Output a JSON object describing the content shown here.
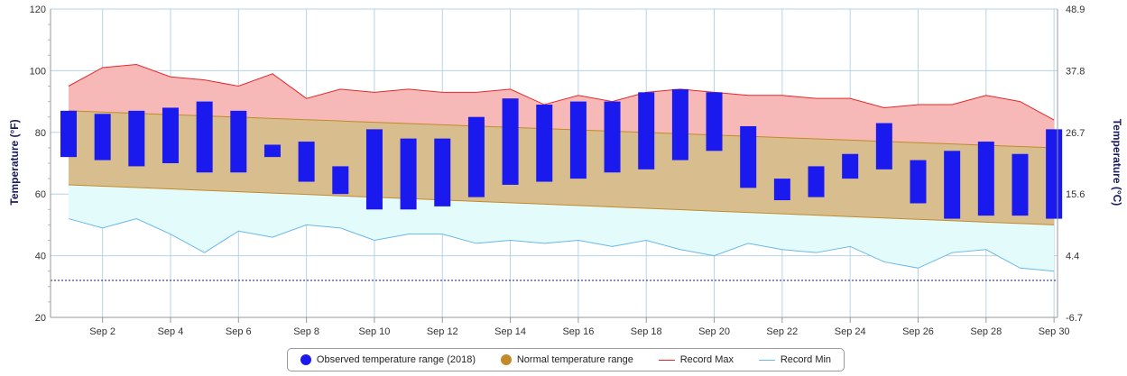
{
  "chart_data": {
    "type": "bar",
    "left_axis": {
      "label": "Temperature (°F)",
      "ticks": [
        "20",
        "40",
        "60",
        "80",
        "100",
        "120"
      ],
      "range": [
        20,
        120
      ]
    },
    "right_axis": {
      "label": "Temperature (°C)",
      "ticks": [
        "-6.7",
        "4.4",
        "15.6",
        "26.7",
        "37.8",
        "48.9"
      ]
    },
    "x_tick_labels": [
      "Sep 2",
      "Sep 4",
      "Sep 6",
      "Sep 8",
      "Sep 10",
      "Sep 12",
      "Sep 14",
      "Sep 16",
      "Sep 18",
      "Sep 20",
      "Sep 22",
      "Sep 24",
      "Sep 26",
      "Sep 28",
      "Sep 30"
    ],
    "days": [
      1,
      2,
      3,
      4,
      5,
      6,
      7,
      8,
      9,
      10,
      11,
      12,
      13,
      14,
      15,
      16,
      17,
      18,
      19,
      20,
      21,
      22,
      23,
      24,
      25,
      26,
      27,
      28,
      29,
      30
    ],
    "reference_line": 32,
    "series": [
      {
        "name": "Observed temperature range (2018)",
        "color": "#1a1aee",
        "low": [
          72,
          71,
          69,
          70,
          67,
          67,
          72,
          64,
          60,
          55,
          55,
          56,
          59,
          63,
          64,
          65,
          67,
          68,
          71,
          74,
          62,
          58,
          59,
          65,
          68,
          57,
          52,
          53,
          53,
          52
        ],
        "high": [
          87,
          86,
          87,
          88,
          90,
          87,
          76,
          77,
          69,
          81,
          78,
          78,
          85,
          91,
          89,
          90,
          90,
          93,
          94,
          93,
          82,
          65,
          69,
          73,
          83,
          71,
          74,
          77,
          73,
          81
        ]
      },
      {
        "name": "Normal temperature range",
        "color": "#c28a2a",
        "low_start": 63,
        "low_end": 50,
        "high_start": 87,
        "high_end": 75
      },
      {
        "name": "Record Max",
        "color": "#e8262a",
        "values": [
          95,
          101,
          102,
          98,
          97,
          95,
          99,
          91,
          94,
          93,
          94,
          93,
          93,
          94,
          89,
          92,
          90,
          93,
          94,
          93,
          92,
          92,
          91,
          91,
          88,
          89,
          89,
          92,
          90,
          84
        ]
      },
      {
        "name": "Record Min",
        "color": "#6ab7e8",
        "values": [
          52,
          49,
          52,
          47,
          41,
          48,
          46,
          50,
          49,
          45,
          47,
          47,
          44,
          45,
          44,
          45,
          43,
          45,
          42,
          40,
          44,
          42,
          41,
          43,
          38,
          36,
          41,
          42,
          36,
          35
        ]
      }
    ],
    "colors": {
      "record_fill": "#f7b9b8",
      "normal_fill": "#d8be8e",
      "min_fill": "#e3fbfb",
      "reference": "#1a1a7e"
    }
  }
}
